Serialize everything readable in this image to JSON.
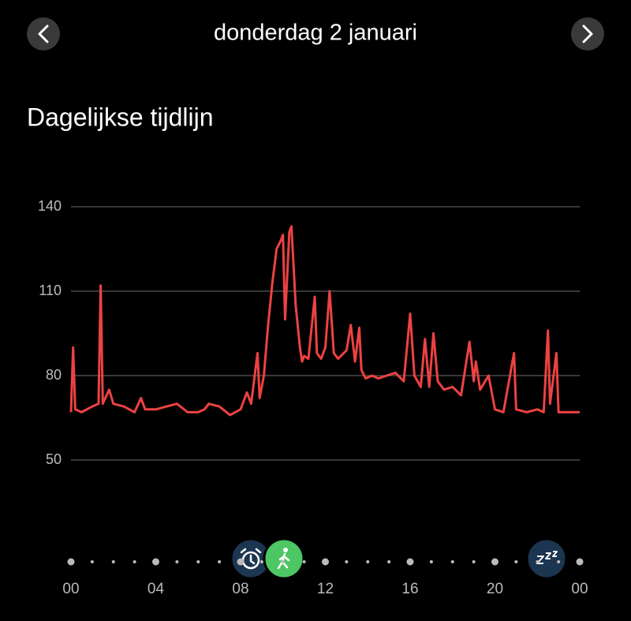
{
  "header": {
    "title": "donderdag 2 januari"
  },
  "section": {
    "title": "Dagelijkse tijdlijn"
  },
  "chart_data": {
    "type": "line",
    "x": [
      0,
      0.1,
      0.2,
      0.5,
      1.0,
      1.3,
      1.4,
      1.5,
      1.8,
      2.0,
      2.5,
      3.0,
      3.3,
      3.5,
      4.0,
      4.5,
      5.0,
      5.5,
      6.0,
      6.3,
      6.5,
      7.0,
      7.5,
      8.0,
      8.3,
      8.5,
      8.8,
      8.9,
      9.1,
      9.3,
      9.5,
      9.7,
      9.9,
      10.0,
      10.1,
      10.3,
      10.4,
      10.6,
      10.8,
      10.9,
      11.0,
      11.2,
      11.5,
      11.6,
      11.8,
      12.0,
      12.2,
      12.4,
      12.6,
      13.0,
      13.2,
      13.4,
      13.6,
      13.7,
      13.9,
      14.2,
      14.5,
      14.9,
      15.3,
      15.7,
      16.0,
      16.2,
      16.5,
      16.7,
      16.9,
      17.1,
      17.3,
      17.6,
      18.0,
      18.4,
      18.8,
      19.0,
      19.1,
      19.3,
      19.7,
      20.0,
      20.4,
      20.9,
      21.0,
      21.5,
      22.0,
      22.3,
      22.5,
      22.6,
      22.9,
      23.0,
      23.5,
      24.0
    ],
    "series": [
      {
        "color": "#ec4242",
        "values": [
          67,
          90,
          68,
          67,
          69,
          70,
          112,
          70,
          75,
          70,
          69,
          67,
          72,
          68,
          68,
          69,
          70,
          67,
          67,
          68,
          70,
          69,
          66,
          68,
          74,
          70,
          88,
          72,
          80,
          98,
          113,
          125,
          128,
          130,
          100,
          131,
          133,
          105,
          90,
          85,
          87,
          86,
          108,
          88,
          86,
          90,
          110,
          88,
          86,
          89,
          98,
          85,
          97,
          82,
          79,
          80,
          79,
          80,
          81,
          78,
          102,
          80,
          76,
          93,
          76,
          95,
          78,
          75,
          76,
          73,
          92,
          78,
          85,
          75,
          80,
          68,
          67,
          88,
          68,
          67,
          68,
          67,
          96,
          70,
          88,
          67,
          67,
          67
        ]
      }
    ],
    "xlim": [
      0,
      24
    ],
    "xticks": [
      {
        "value": 0,
        "label": "00"
      },
      {
        "value": 4,
        "label": "04"
      },
      {
        "value": 8,
        "label": "08"
      },
      12,
      16,
      20,
      {
        "value": 24,
        "label": "00"
      }
    ],
    "ylim": [
      50,
      140
    ],
    "yticks": [
      50,
      80,
      110,
      140
    ],
    "grid": true
  }
}
